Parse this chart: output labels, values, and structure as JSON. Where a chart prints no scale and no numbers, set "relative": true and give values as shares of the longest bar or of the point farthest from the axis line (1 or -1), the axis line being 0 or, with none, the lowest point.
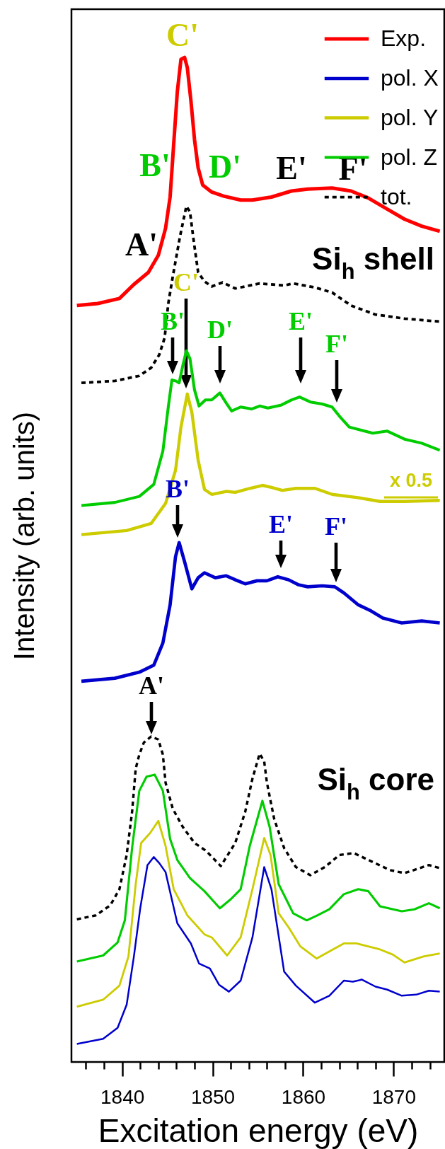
{
  "chart_data": {
    "type": "line",
    "relative": true,
    "xlabel": "Excitation energy (eV)",
    "ylabel": "Intensity (arb. units)",
    "xlim": [
      1834.4,
      1875.6
    ],
    "xticks": [
      {
        "value": 1836,
        "label": null
      },
      {
        "value": 1838,
        "label": null
      },
      1840,
      {
        "value": 1842,
        "label": null
      },
      {
        "value": 1844,
        "label": null
      },
      {
        "value": 1846,
        "label": null
      },
      {
        "value": 1848,
        "label": null
      },
      1850,
      {
        "value": 1852,
        "label": null
      },
      {
        "value": 1854,
        "label": null
      },
      {
        "value": 1856,
        "label": null
      },
      {
        "value": 1858,
        "label": null
      },
      1860,
      {
        "value": 1862,
        "label": null
      },
      {
        "value": 1864,
        "label": null
      },
      {
        "value": 1866,
        "label": null
      },
      {
        "value": 1868,
        "label": null
      },
      1870,
      {
        "value": 1872,
        "label": null
      },
      {
        "value": 1874,
        "label": null
      }
    ],
    "legend": "top right",
    "grid": false,
    "annotations": [
      "C'",
      "B'",
      "D'",
      "E'",
      "F'",
      "A'",
      "Si$_{h}$ shell",
      "x 0.5",
      "Si$_{h}$ core",
      "B'",
      "C'",
      "D'",
      "E'",
      "F'",
      "B'",
      "E'",
      "F'",
      "A'"
    ],
    "series": [
      {
        "name": "Exp.",
        "color": "#ff0000",
        "x": [
          1835.0,
          1837.3,
          1839.7,
          1841.3,
          1842.9,
          1844.0,
          1844.8,
          1845.3,
          1845.7,
          1846.1,
          1846.5,
          1846.9,
          1847.2,
          1847.6,
          1848.0,
          1848.4,
          1848.9,
          1849.9,
          1851.2,
          1853.1,
          1854.4,
          1856.5,
          1858.7,
          1860.5,
          1863.2,
          1865.3,
          1867.2,
          1869.1,
          1871.2,
          1873.1,
          1875.1
        ],
        "values": [
          0.753,
          0.755,
          0.76,
          0.774,
          0.786,
          0.803,
          0.83,
          0.861,
          0.914,
          0.966,
          0.998,
          1.0,
          0.99,
          0.957,
          0.918,
          0.89,
          0.873,
          0.866,
          0.862,
          0.858,
          0.858,
          0.861,
          0.867,
          0.869,
          0.87,
          0.867,
          0.86,
          0.85,
          0.839,
          0.832,
          0.827
        ]
      },
      {
        "name": "pol. X",
        "color": "#0000cc",
        "x": [
          1835.5,
          1839.2,
          1841.9,
          1843.5,
          1844.5,
          1845.3,
          1845.9,
          1846.3,
          1846.9,
          1847.7,
          1848.4,
          1849.1,
          1850.3,
          1851.5,
          1852.5,
          1853.6,
          1854.9,
          1856.0,
          1857.2,
          1858.4,
          1859.5,
          1860.5,
          1862.1,
          1863.5,
          1864.5,
          1866.1,
          1867.5,
          1868.8,
          1870.9,
          1873.1,
          1875.1
        ],
        "values": [
          0.379,
          0.382,
          0.388,
          0.395,
          0.417,
          0.455,
          0.503,
          0.517,
          0.498,
          0.471,
          0.482,
          0.487,
          0.482,
          0.484,
          0.48,
          0.476,
          0.479,
          0.479,
          0.483,
          0.48,
          0.475,
          0.473,
          0.474,
          0.473,
          0.467,
          0.455,
          0.449,
          0.442,
          0.437,
          0.439,
          0.437
        ]
      },
      {
        "name": "pol. Y",
        "color": "#cccc00",
        "x": [
          1835.5,
          1840.5,
          1843.2,
          1844.8,
          1845.9,
          1846.5,
          1847.2,
          1847.7,
          1848.4,
          1849.1,
          1849.9,
          1851.5,
          1852.5,
          1854.1,
          1855.5,
          1856.5,
          1857.7,
          1859.2,
          1861.3,
          1863.2,
          1865.9,
          1868.5,
          1871.2,
          1875.1
        ],
        "values": [
          0.525,
          0.529,
          0.536,
          0.556,
          0.589,
          0.632,
          0.665,
          0.647,
          0.599,
          0.57,
          0.565,
          0.568,
          0.567,
          0.571,
          0.574,
          0.572,
          0.569,
          0.571,
          0.571,
          0.565,
          0.562,
          0.558,
          0.558,
          0.559
        ]
      },
      {
        "name": "pol. Z",
        "color": "#00cc00",
        "x": [
          1835.5,
          1839.2,
          1841.9,
          1843.5,
          1844.5,
          1845.1,
          1845.5,
          1845.9,
          1846.3,
          1846.7,
          1847.1,
          1847.5,
          1848.0,
          1848.5,
          1849.2,
          1849.9,
          1850.8,
          1851.5,
          1852.1,
          1853.1,
          1854.3,
          1855.2,
          1856.1,
          1857.6,
          1858.7,
          1859.6,
          1860.8,
          1862.1,
          1863.2,
          1864.0,
          1865.1,
          1867.7,
          1869.3,
          1871.2,
          1873.1,
          1875.1
        ],
        "values": [
          0.554,
          0.557,
          0.563,
          0.575,
          0.608,
          0.652,
          0.679,
          0.678,
          0.676,
          0.693,
          0.708,
          0.7,
          0.669,
          0.653,
          0.659,
          0.659,
          0.666,
          0.656,
          0.648,
          0.652,
          0.65,
          0.653,
          0.651,
          0.654,
          0.659,
          0.662,
          0.657,
          0.655,
          0.652,
          0.643,
          0.632,
          0.626,
          0.628,
          0.62,
          0.616,
          0.609
        ]
      },
      {
        "name": "tot.",
        "color": "#000000",
        "line_style": "dotted",
        "x": [
          1835.5,
          1839.2,
          1841.9,
          1843.2,
          1844.1,
          1844.7,
          1845.1,
          1845.6,
          1846.4,
          1847.1,
          1847.5,
          1847.9,
          1848.4,
          1849.1,
          1849.9,
          1851.1,
          1852.5,
          1855.2,
          1857.9,
          1858.9,
          1861.3,
          1863.2,
          1865.3,
          1868.0,
          1871.2,
          1875.1
        ],
        "values": [
          0.676,
          0.678,
          0.683,
          0.691,
          0.704,
          0.721,
          0.755,
          0.782,
          0.822,
          0.852,
          0.846,
          0.818,
          0.786,
          0.777,
          0.772,
          0.776,
          0.77,
          0.775,
          0.773,
          0.775,
          0.771,
          0.766,
          0.753,
          0.744,
          0.74,
          0.737
        ]
      },
      {
        "color": "#000000",
        "line_style": "dotted",
        "x": [
          1835.0,
          1837.1,
          1838.7,
          1839.7,
          1840.5,
          1841.1,
          1841.5,
          1841.9,
          1842.4,
          1843.2,
          1844.0,
          1844.5,
          1844.8,
          1845.6,
          1846.7,
          1848.0,
          1849.3,
          1850.9,
          1852.5,
          1853.6,
          1854.4,
          1855.2,
          1855.7,
          1856.0,
          1856.8,
          1857.9,
          1859.2,
          1860.8,
          1862.4,
          1864.0,
          1865.6,
          1867.7,
          1869.6,
          1871.2,
          1873.9,
          1875.1
        ],
        "values": [
          0.142,
          0.146,
          0.156,
          0.172,
          0.206,
          0.249,
          0.292,
          0.306,
          0.318,
          0.324,
          0.321,
          0.306,
          0.278,
          0.252,
          0.234,
          0.218,
          0.21,
          0.195,
          0.218,
          0.249,
          0.282,
          0.307,
          0.299,
          0.278,
          0.242,
          0.213,
          0.194,
          0.186,
          0.194,
          0.206,
          0.208,
          0.199,
          0.191,
          0.188,
          0.196,
          0.193
        ]
      },
      {
        "color": "#00cc00",
        "x": [
          1835.0,
          1837.9,
          1839.5,
          1840.3,
          1841.1,
          1841.9,
          1842.7,
          1843.6,
          1844.5,
          1845.3,
          1846.1,
          1847.5,
          1849.1,
          1850.8,
          1852.0,
          1853.1,
          1854.1,
          1855.5,
          1856.3,
          1857.3,
          1858.9,
          1860.4,
          1861.6,
          1862.9,
          1864.5,
          1866.1,
          1867.2,
          1868.5,
          1870.9,
          1872.3,
          1873.9,
          1875.1
        ],
        "values": [
          0.1,
          0.106,
          0.119,
          0.141,
          0.213,
          0.27,
          0.284,
          0.286,
          0.27,
          0.222,
          0.201,
          0.183,
          0.17,
          0.153,
          0.162,
          0.172,
          0.215,
          0.26,
          0.234,
          0.177,
          0.148,
          0.141,
          0.146,
          0.152,
          0.167,
          0.172,
          0.17,
          0.155,
          0.15,
          0.152,
          0.158,
          0.153
        ]
      },
      {
        "color": "#cccc00",
        "x": [
          1835.0,
          1837.9,
          1839.7,
          1840.7,
          1841.5,
          1842.1,
          1843.1,
          1844.0,
          1844.8,
          1845.7,
          1847.2,
          1849.1,
          1849.9,
          1851.6,
          1853.1,
          1854.4,
          1855.7,
          1856.4,
          1857.3,
          1858.4,
          1859.7,
          1861.5,
          1862.9,
          1864.5,
          1865.9,
          1868.5,
          1869.9,
          1871.2,
          1873.3,
          1875.1
        ],
        "values": [
          0.055,
          0.062,
          0.076,
          0.105,
          0.177,
          0.218,
          0.228,
          0.24,
          0.215,
          0.172,
          0.146,
          0.127,
          0.124,
          0.106,
          0.124,
          0.172,
          0.223,
          0.206,
          0.148,
          0.134,
          0.115,
          0.103,
          0.11,
          0.118,
          0.118,
          0.112,
          0.107,
          0.099,
          0.105,
          0.108
        ]
      },
      {
        "color": "#0000cc",
        "x": [
          1835.0,
          1837.9,
          1839.5,
          1840.5,
          1841.3,
          1842.0,
          1842.8,
          1843.5,
          1844.1,
          1844.8,
          1846.1,
          1847.6,
          1848.5,
          1849.7,
          1850.7,
          1851.8,
          1853.1,
          1854.4,
          1855.7,
          1856.5,
          1857.9,
          1859.2,
          1861.3,
          1862.9,
          1864.5,
          1865.5,
          1866.5,
          1868.0,
          1869.3,
          1870.9,
          1872.5,
          1873.9,
          1875.1
        ],
        "values": [
          0.018,
          0.023,
          0.034,
          0.057,
          0.105,
          0.153,
          0.196,
          0.204,
          0.198,
          0.189,
          0.138,
          0.118,
          0.098,
          0.093,
          0.077,
          0.07,
          0.081,
          0.124,
          0.194,
          0.172,
          0.09,
          0.076,
          0.059,
          0.066,
          0.081,
          0.08,
          0.082,
          0.075,
          0.072,
          0.066,
          0.067,
          0.071,
          0.07
        ]
      }
    ]
  }
}
